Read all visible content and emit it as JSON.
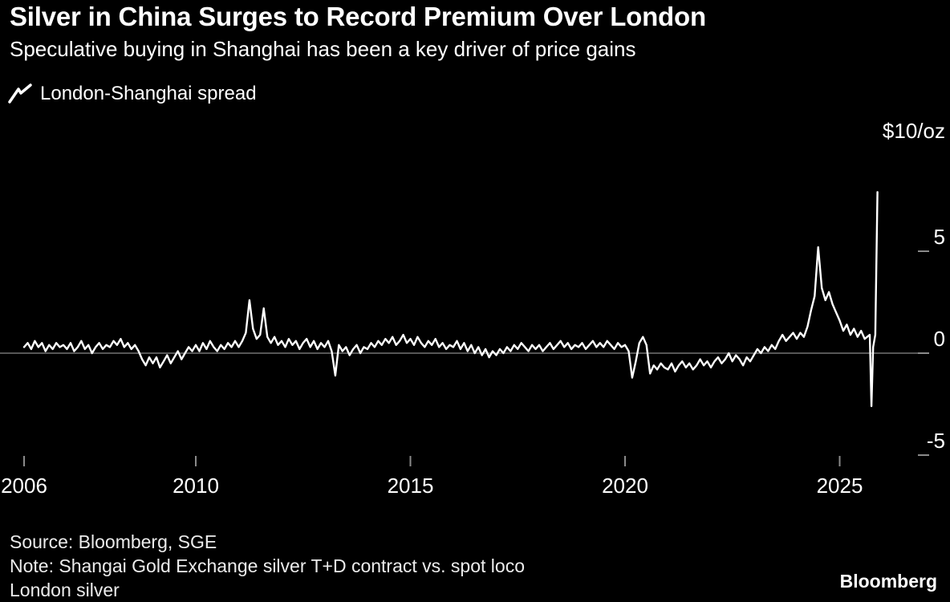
{
  "chart_data": {
    "type": "line",
    "title": "Silver in China Surges to Record Premium Over London",
    "subtitle": "Speculative buying in Shanghai has been a key driver of price gains",
    "legend_label": "London-Shanghai spread",
    "unit_label": "$10/oz",
    "x_ticks": [
      2006,
      2010,
      2015,
      2020,
      2025
    ],
    "y_ticks": [
      5,
      0,
      -5
    ],
    "x_domain": [
      2006,
      2026.5
    ],
    "y_domain": [
      -6.5,
      11
    ],
    "zero_line": true,
    "grid": "zero-line-only",
    "legend_position": "top-left",
    "background": "#000000",
    "line_color": "#ffffff",
    "axis_color": "#8a8a8a",
    "series": [
      {
        "name": "London-Shanghai spread",
        "unit": "$/oz",
        "color": "#ffffff",
        "x_start": 2006.0,
        "x_step_years": 0.0833333,
        "values": [
          0.3,
          0.5,
          0.2,
          0.6,
          0.3,
          0.5,
          0.1,
          0.4,
          0.2,
          0.5,
          0.3,
          0.4,
          0.2,
          0.5,
          0.1,
          0.3,
          0.6,
          0.2,
          0.4,
          0.0,
          0.3,
          0.5,
          0.2,
          0.4,
          0.3,
          0.6,
          0.4,
          0.7,
          0.3,
          0.5,
          0.2,
          0.4,
          0.1,
          -0.3,
          -0.6,
          -0.2,
          -0.5,
          -0.2,
          -0.7,
          -0.4,
          -0.1,
          -0.5,
          -0.2,
          0.1,
          -0.3,
          0.0,
          0.3,
          0.1,
          0.4,
          0.1,
          0.5,
          0.2,
          0.6,
          0.3,
          0.1,
          0.4,
          0.2,
          0.5,
          0.3,
          0.6,
          0.3,
          0.6,
          1.0,
          2.6,
          1.2,
          0.7,
          0.9,
          2.2,
          0.8,
          0.5,
          0.8,
          0.4,
          0.6,
          0.3,
          0.7,
          0.4,
          0.6,
          0.2,
          0.5,
          0.7,
          0.3,
          0.6,
          0.2,
          0.5,
          0.3,
          0.6,
          0.1,
          -1.1,
          0.4,
          0.1,
          0.3,
          -0.1,
          0.2,
          0.4,
          0.0,
          0.3,
          0.2,
          0.5,
          0.3,
          0.6,
          0.4,
          0.7,
          0.5,
          0.8,
          0.4,
          0.6,
          0.9,
          0.5,
          0.7,
          0.4,
          0.8,
          0.5,
          0.3,
          0.6,
          0.4,
          0.7,
          0.3,
          0.5,
          0.2,
          0.4,
          0.3,
          0.6,
          0.2,
          0.5,
          0.1,
          0.4,
          0.0,
          0.3,
          -0.1,
          0.2,
          -0.2,
          0.1,
          -0.1,
          0.2,
          0.0,
          0.3,
          0.1,
          0.4,
          0.2,
          0.5,
          0.3,
          0.1,
          0.4,
          0.2,
          0.4,
          0.1,
          0.3,
          0.5,
          0.2,
          0.4,
          0.6,
          0.3,
          0.5,
          0.2,
          0.4,
          0.3,
          0.5,
          0.2,
          0.4,
          0.6,
          0.3,
          0.5,
          0.3,
          0.6,
          0.4,
          0.2,
          0.5,
          0.3,
          0.4,
          0.1,
          -1.2,
          -0.4,
          0.5,
          0.8,
          0.4,
          -1.0,
          -0.6,
          -0.8,
          -0.5,
          -0.7,
          -0.8,
          -0.5,
          -0.9,
          -0.6,
          -0.4,
          -0.7,
          -0.5,
          -0.8,
          -0.6,
          -0.3,
          -0.6,
          -0.4,
          -0.7,
          -0.4,
          -0.2,
          -0.5,
          -0.3,
          0.0,
          -0.4,
          -0.1,
          -0.3,
          -0.6,
          -0.2,
          -0.4,
          -0.1,
          0.2,
          0.0,
          0.3,
          0.1,
          0.4,
          0.2,
          0.6,
          0.9,
          0.6,
          0.8,
          1.0,
          0.7,
          1.0,
          0.8,
          1.3,
          2.1,
          2.8,
          5.2,
          3.2,
          2.6,
          3.0,
          2.4,
          2.0,
          1.6,
          1.1,
          1.4,
          0.9,
          1.2,
          0.8,
          1.1,
          0.7
        ],
        "tail_points": [
          [
            2025.7,
            0.9
          ],
          [
            2025.74,
            -2.6
          ],
          [
            2025.78,
            0.3
          ],
          [
            2025.83,
            0.9
          ],
          [
            2025.88,
            7.9
          ]
        ]
      }
    ]
  },
  "footer": {
    "source": "Source: Bloomberg, SGE",
    "note_line1": "Note: Shangai Gold Exchange silver T+D contract vs. spot loco",
    "note_line2": "London silver",
    "brand": "Bloomberg"
  }
}
